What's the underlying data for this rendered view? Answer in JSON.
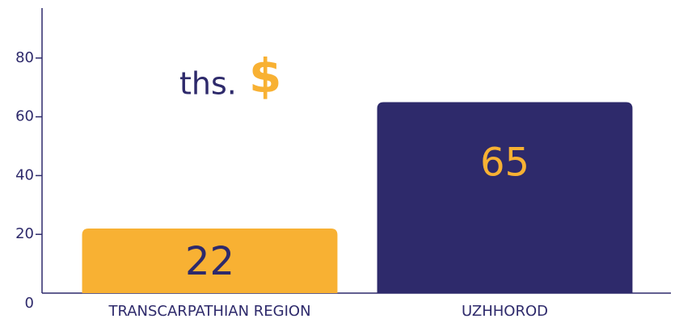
{
  "chart_data": {
    "type": "bar",
    "annotation": {
      "text": "ths.",
      "symbol": "$",
      "symbol_color": "#f8b133",
      "color": "#2e2a6b"
    },
    "categories": [
      "TRANSCARPATHIAN REGION",
      "UZHHOROD"
    ],
    "values": [
      22,
      65
    ],
    "colors": [
      "#f8b133",
      "#2e2a6b"
    ],
    "label_colors": [
      "#2e2a6b",
      "#f8b133"
    ],
    "ylim": [
      0,
      97
    ],
    "yticks": [
      0,
      20,
      40,
      60,
      80
    ],
    "grid": false
  }
}
